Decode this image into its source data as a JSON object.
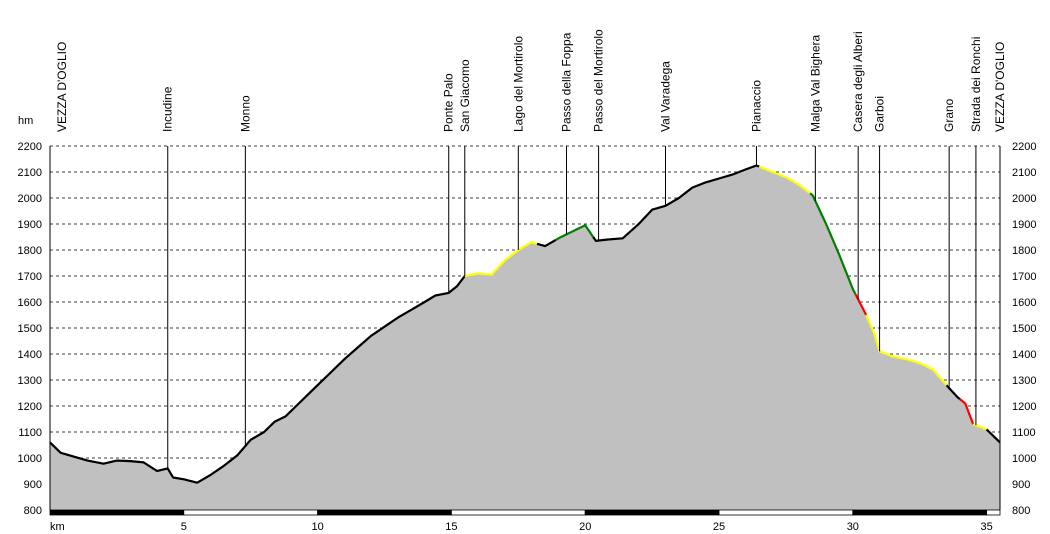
{
  "chart_data": {
    "type": "area",
    "ylabel": "hm",
    "xlabel": "km",
    "xlim": [
      0,
      35.5
    ],
    "ylim": [
      800,
      2200
    ],
    "y_ticks": [
      800,
      900,
      1000,
      1100,
      1200,
      1300,
      1400,
      1500,
      1600,
      1700,
      1800,
      1900,
      2000,
      2100,
      2200
    ],
    "x_ticks": [
      5,
      10,
      15,
      20,
      25,
      30,
      35
    ],
    "grid": true,
    "fill_color": "#c0c0c0",
    "profile": [
      [
        0,
        1060
      ],
      [
        0.4,
        1020
      ],
      [
        0.9,
        1005
      ],
      [
        1.4,
        990
      ],
      [
        2.0,
        978
      ],
      [
        2.5,
        990
      ],
      [
        3.0,
        988
      ],
      [
        3.5,
        983
      ],
      [
        4.0,
        950
      ],
      [
        4.4,
        960
      ],
      [
        4.6,
        925
      ],
      [
        5.0,
        918
      ],
      [
        5.5,
        905
      ],
      [
        6.0,
        935
      ],
      [
        6.5,
        970
      ],
      [
        7.0,
        1010
      ],
      [
        7.5,
        1070
      ],
      [
        8.0,
        1100
      ],
      [
        8.4,
        1140
      ],
      [
        8.8,
        1160
      ],
      [
        9.2,
        1200
      ],
      [
        9.6,
        1240
      ],
      [
        10.0,
        1280
      ],
      [
        10.5,
        1330
      ],
      [
        11.0,
        1380
      ],
      [
        11.5,
        1425
      ],
      [
        12.0,
        1470
      ],
      [
        12.5,
        1505
      ],
      [
        13.0,
        1540
      ],
      [
        13.5,
        1570
      ],
      [
        14.0,
        1600
      ],
      [
        14.4,
        1625
      ],
      [
        14.9,
        1635
      ],
      [
        15.2,
        1660
      ],
      [
        15.5,
        1700
      ],
      [
        16.0,
        1710
      ],
      [
        16.5,
        1705
      ],
      [
        17.0,
        1760
      ],
      [
        17.5,
        1800
      ],
      [
        18.0,
        1830
      ],
      [
        18.5,
        1815
      ],
      [
        19.0,
        1845
      ],
      [
        19.5,
        1870
      ],
      [
        20.0,
        1895
      ],
      [
        20.4,
        1835
      ],
      [
        20.8,
        1840
      ],
      [
        21.4,
        1845
      ],
      [
        22.0,
        1900
      ],
      [
        22.5,
        1955
      ],
      [
        23.0,
        1970
      ],
      [
        23.5,
        2000
      ],
      [
        24.0,
        2040
      ],
      [
        24.5,
        2060
      ],
      [
        25.0,
        2075
      ],
      [
        25.5,
        2090
      ],
      [
        26.0,
        2110
      ],
      [
        26.4,
        2125
      ],
      [
        27.0,
        2100
      ],
      [
        27.5,
        2080
      ],
      [
        28.0,
        2050
      ],
      [
        28.5,
        2010
      ],
      [
        29.0,
        1900
      ],
      [
        29.5,
        1780
      ],
      [
        30.0,
        1650
      ],
      [
        30.5,
        1550
      ],
      [
        30.8,
        1480
      ],
      [
        31.0,
        1410
      ],
      [
        31.5,
        1390
      ],
      [
        32.0,
        1380
      ],
      [
        32.5,
        1365
      ],
      [
        33.0,
        1340
      ],
      [
        33.5,
        1280
      ],
      [
        33.9,
        1235
      ],
      [
        34.2,
        1210
      ],
      [
        34.5,
        1130
      ],
      [
        35.0,
        1110
      ],
      [
        35.5,
        1060
      ]
    ],
    "segments": [
      {
        "color": "#000000",
        "from": 0,
        "to": 15.5
      },
      {
        "color": "#ffff00",
        "from": 15.5,
        "to": 18.2
      },
      {
        "color": "#000000",
        "from": 18.2,
        "to": 18.9
      },
      {
        "color": "#008000",
        "from": 18.9,
        "to": 20.3
      },
      {
        "color": "#000000",
        "from": 20.3,
        "to": 26.5
      },
      {
        "color": "#ffff00",
        "from": 26.5,
        "to": 28.4
      },
      {
        "color": "#008000",
        "from": 28.4,
        "to": 30.1
      },
      {
        "color": "#ff0000",
        "from": 30.1,
        "to": 30.5
      },
      {
        "color": "#ffff00",
        "from": 30.5,
        "to": 33.5
      },
      {
        "color": "#000000",
        "from": 33.5,
        "to": 34.0
      },
      {
        "color": "#ff0000",
        "from": 34.0,
        "to": 34.5
      },
      {
        "color": "#ffff00",
        "from": 34.5,
        "to": 35.0
      },
      {
        "color": "#000000",
        "from": 35.0,
        "to": 35.5
      }
    ],
    "waypoints": [
      {
        "label": "VEZZA D'OGLIO",
        "km": 0
      },
      {
        "label": "Incudine",
        "km": 4.4
      },
      {
        "label": "Monno",
        "km": 7.3
      },
      {
        "label": "Ponte Palo",
        "km": 14.9
      },
      {
        "label": "San Giacomo",
        "km": 15.5
      },
      {
        "label": "Lago del Mortirolo",
        "km": 17.5
      },
      {
        "label": "Passo della Foppa",
        "km": 19.3
      },
      {
        "label": "Passo del Mortirolo",
        "km": 20.5
      },
      {
        "label": "Val Varadega",
        "km": 23.0
      },
      {
        "label": "Pianaccio",
        "km": 26.4
      },
      {
        "label": "Malga Val Bighera",
        "km": 28.6
      },
      {
        "label": "Casera degli Alberi",
        "km": 30.2
      },
      {
        "label": "Garboi",
        "km": 31.0
      },
      {
        "label": "Grano",
        "km": 33.6
      },
      {
        "label": "Strada dei Ronchi",
        "km": 34.6
      },
      {
        "label": "VEZZA D'OGLIO",
        "km": 35.5
      }
    ]
  }
}
